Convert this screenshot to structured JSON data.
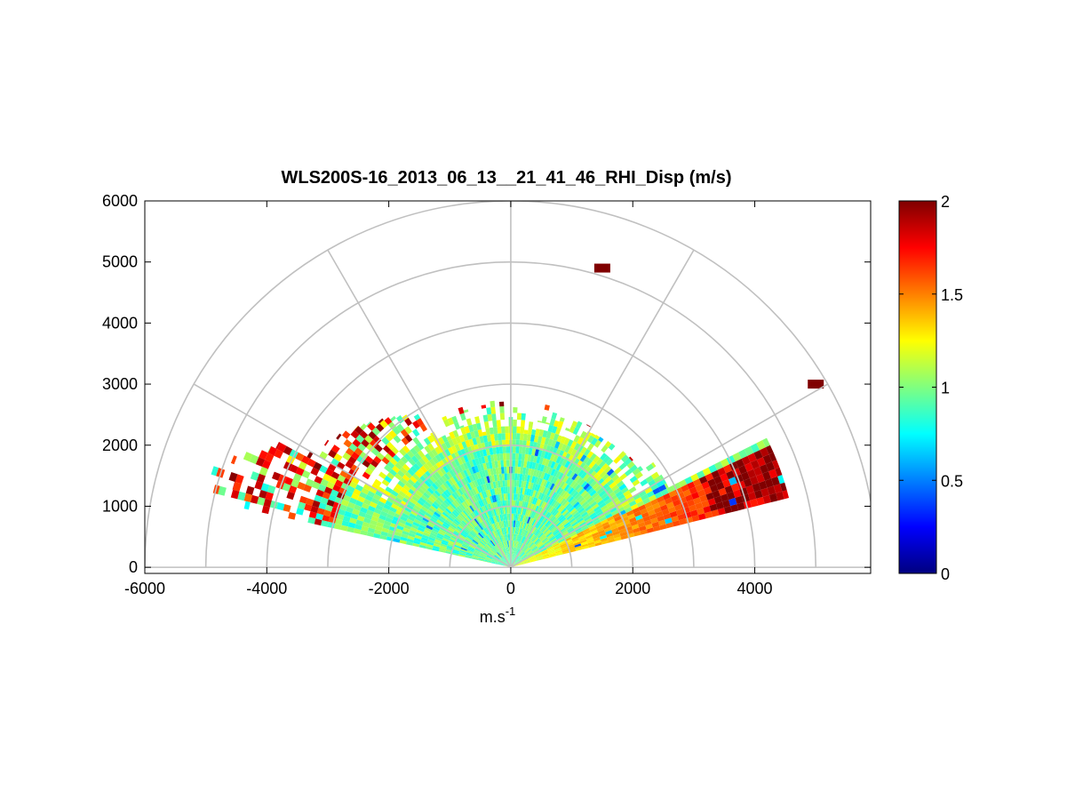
{
  "chart_data": {
    "type": "heatmap",
    "subtype": "polar-rhi-sector",
    "title": "WLS200S-16_2013_06_13__21_41_46_RHI_Disp (m/s)",
    "xlabel_base": "m.s",
    "xlabel_exp": "-1",
    "ylabel": "",
    "xlim": [
      -6000,
      5900
    ],
    "ylim": [
      -100,
      6000
    ],
    "xticks": [
      -6000,
      -4000,
      -2000,
      0,
      2000,
      4000
    ],
    "xtick_labels": [
      "-6000",
      "-4000",
      "-2000",
      "0",
      "2000",
      "4000"
    ],
    "yticks": [
      0,
      1000,
      2000,
      3000,
      4000,
      5000,
      6000
    ],
    "ytick_labels": [
      "0",
      "1000",
      "2000",
      "3000",
      "4000",
      "5000",
      "6000"
    ],
    "polar_grid": {
      "ring_radii": [
        1000,
        2000,
        3000,
        4000,
        5000,
        6000
      ],
      "spoke_angles_deg": [
        0,
        30,
        60,
        90,
        120,
        150,
        180
      ],
      "color": "#c0c0c0"
    },
    "colorbar": {
      "colormap": "jet",
      "min": 0,
      "max": 2,
      "ticks": [
        0,
        0.5,
        1,
        1.5,
        2
      ],
      "tick_labels": [
        "0",
        "0.5",
        "1",
        "1.5",
        "2"
      ]
    },
    "scan": {
      "elevation_range_deg": [
        0,
        167
      ],
      "range_m": [
        0,
        5000
      ],
      "typical_value": 0.95,
      "near_edge_value_right": 1.7,
      "edge_value": 2.0
    },
    "features": [
      {
        "type": "sector",
        "r0": 0,
        "r1": 1100,
        "a0": 14,
        "a1": 166,
        "v": 0.95
      },
      {
        "type": "sector",
        "r0": 1100,
        "r1": 1900,
        "a0": 14,
        "a1": 164,
        "v": 1.0
      },
      {
        "type": "sector",
        "r0": 1900,
        "r1": 2500,
        "a0": 22,
        "a1": 154,
        "v": 1.05
      },
      {
        "type": "sector",
        "r0": 2500,
        "r1": 3300,
        "a0": 25,
        "a1": 152,
        "v": 1.1
      },
      {
        "type": "sector",
        "r0": 1000,
        "r1": 4700,
        "a0": 14,
        "a1": 25,
        "v": 1.35
      },
      {
        "type": "sector",
        "r0": 3300,
        "r1": 4700,
        "a0": 14,
        "a1": 25,
        "v": 1.95
      },
      {
        "type": "sector",
        "r0": 3300,
        "r1": 4700,
        "a0": 160,
        "a1": 168,
        "v": 1.9
      },
      {
        "type": "cell",
        "x": 1500,
        "y": 4900,
        "v": 2.0
      },
      {
        "type": "cell",
        "x": 5000,
        "y": 3000,
        "v": 2.0
      }
    ]
  }
}
